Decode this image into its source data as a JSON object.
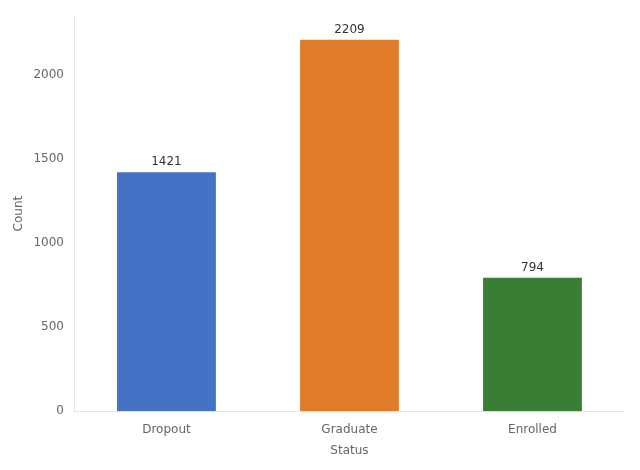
{
  "chart_data": {
    "type": "bar",
    "categories": [
      "Dropout",
      "Graduate",
      "Enrolled"
    ],
    "values": [
      1421,
      2209,
      794
    ],
    "colors": [
      "#4472c4",
      "#e07b2a",
      "#3a7d35"
    ],
    "xlabel": "Status",
    "ylabel": "Count",
    "ylim": [
      0,
      2350
    ],
    "yticks": [
      0,
      500,
      1000,
      1500,
      2000
    ],
    "data_labels": true,
    "grid": false
  }
}
